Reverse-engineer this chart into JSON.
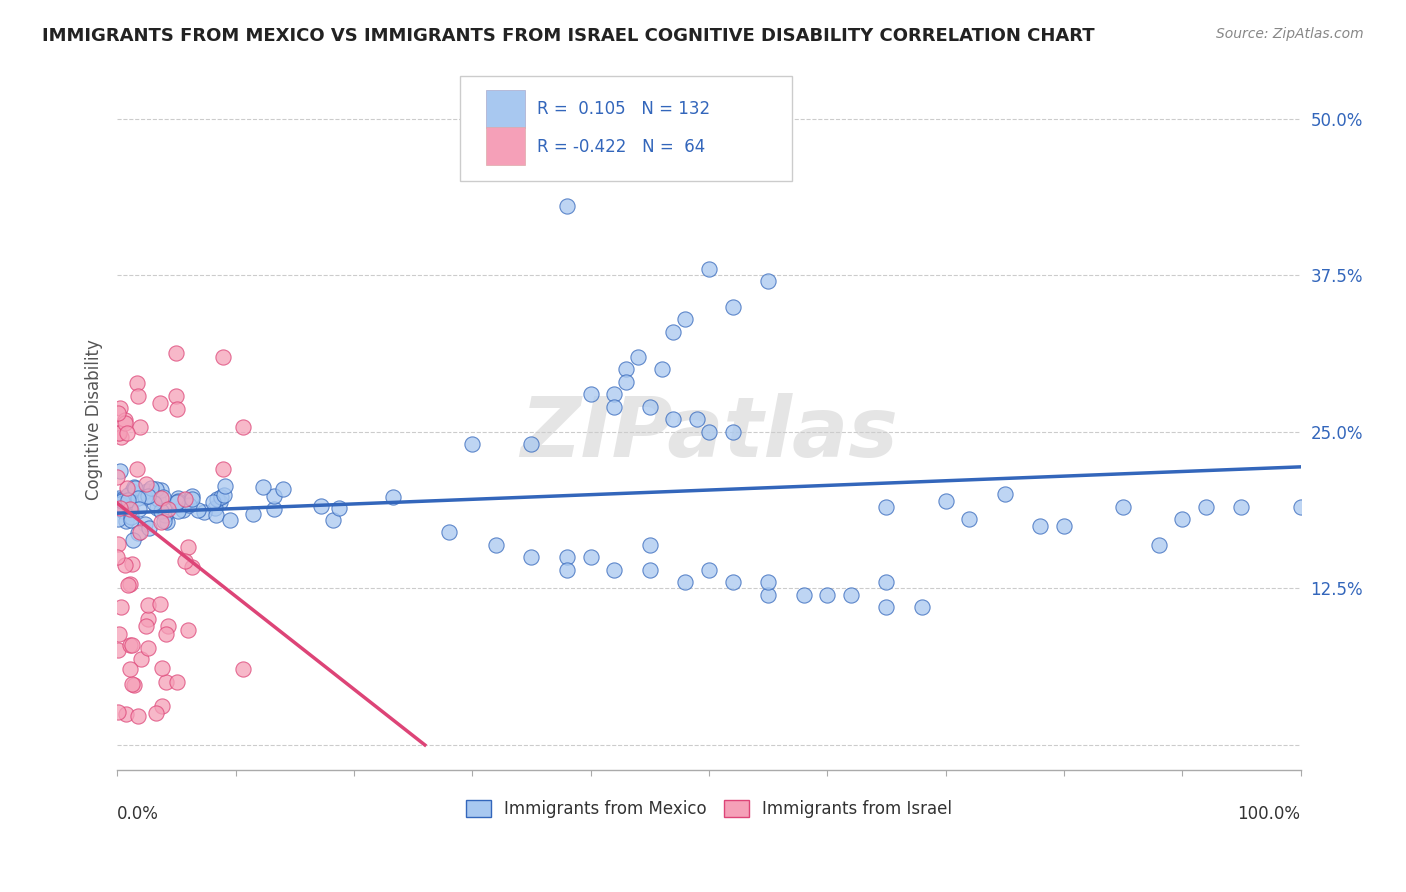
{
  "title": "IMMIGRANTS FROM MEXICO VS IMMIGRANTS FROM ISRAEL COGNITIVE DISABILITY CORRELATION CHART",
  "source": "Source: ZipAtlas.com",
  "ylabel": "Cognitive Disability",
  "y_ticks": [
    0.0,
    0.125,
    0.25,
    0.375,
    0.5
  ],
  "y_tick_labels": [
    "",
    "12.5%",
    "25.0%",
    "37.5%",
    "50.0%"
  ],
  "x_range": [
    0.0,
    1.0
  ],
  "y_range": [
    -0.02,
    0.54
  ],
  "legend_label1": "Immigrants from Mexico",
  "legend_label2": "Immigrants from Israel",
  "R1": 0.105,
  "N1": 132,
  "R2": -0.422,
  "N2": 64,
  "color_mexico": "#a8c8f0",
  "color_israel": "#f5a0b8",
  "color_mexico_line": "#3366bb",
  "color_israel_line": "#dd4477",
  "background_color": "#ffffff",
  "grid_color": "#cccccc",
  "watermark_text": "ZIPatlas",
  "mexico_line_start": 0.185,
  "mexico_line_end": 0.222,
  "israel_line_start": 0.193,
  "israel_line_end_x": 0.26,
  "israel_line_end_y": 0.0
}
